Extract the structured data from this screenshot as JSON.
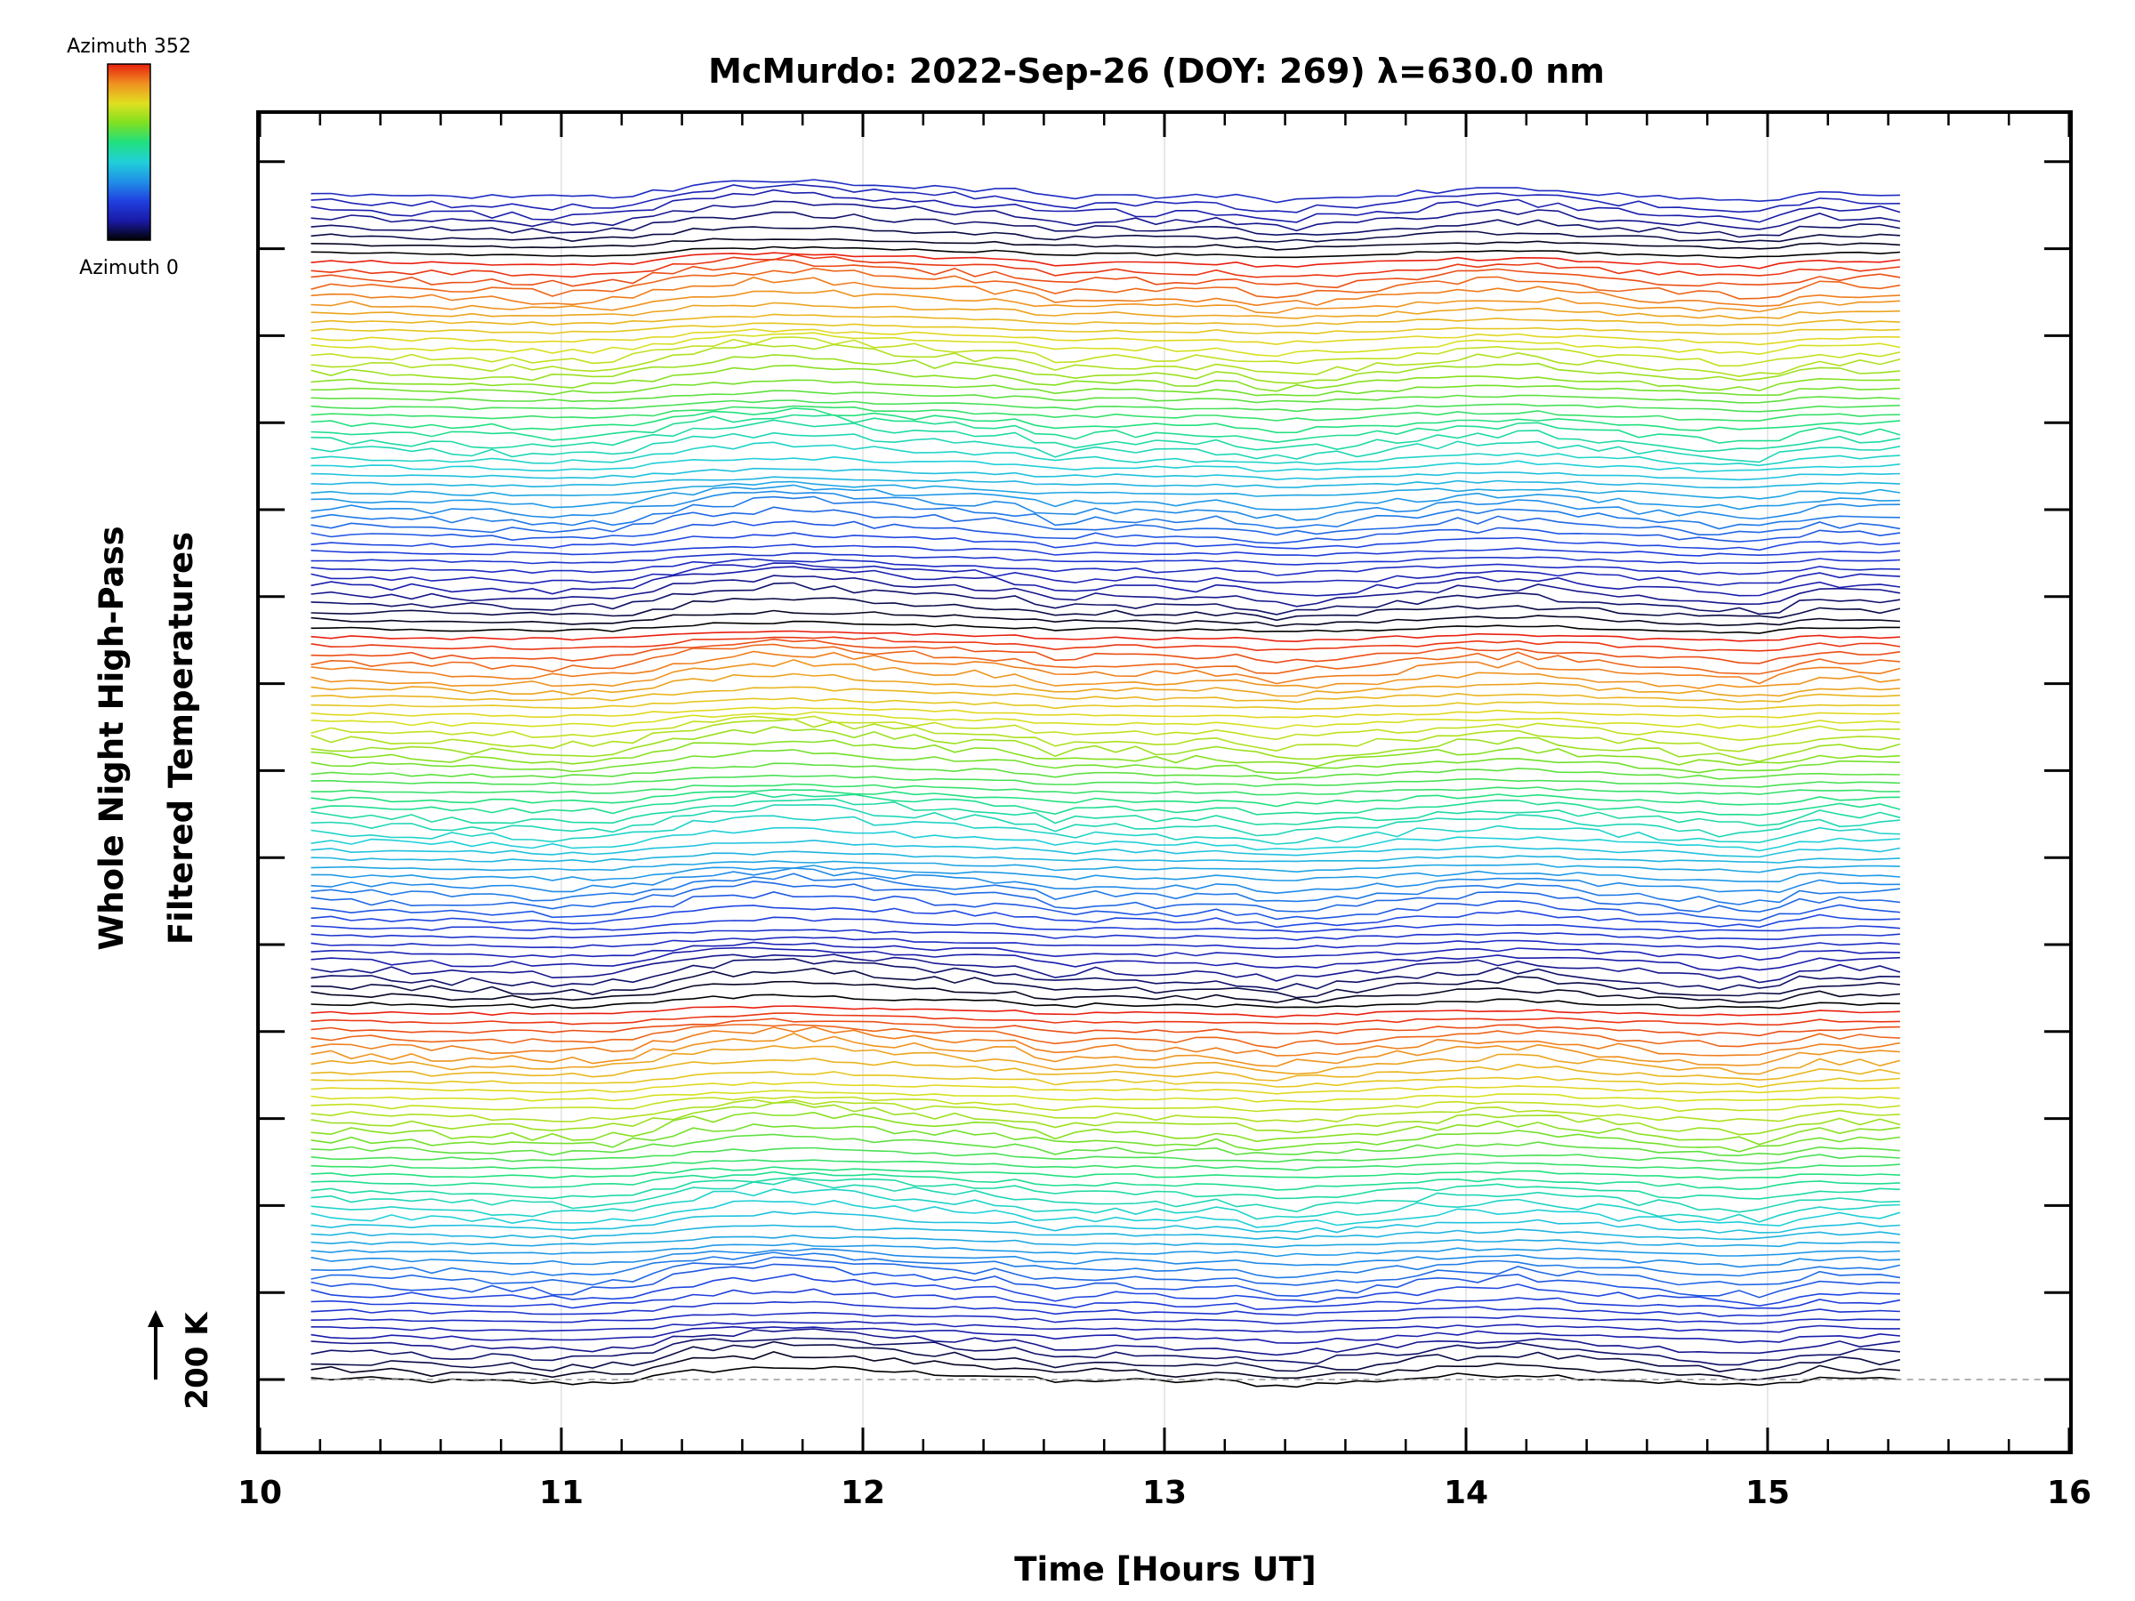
{
  "chart_data": {
    "type": "line",
    "title": "McMurdo: 2022-Sep-26 (DOY: 269) λ=630.0 nm",
    "xlabel": "Time [Hours UT]",
    "ylabel_line1": "Whole Night High-Pass",
    "ylabel_line2": "Filtered Temperatures",
    "xlim": [
      10,
      16
    ],
    "x_ticks": [
      "10",
      "11",
      "12",
      "13",
      "14",
      "15",
      "16"
    ],
    "x_minor_step": 0.2,
    "grid_x": [
      11,
      12,
      13,
      14,
      15
    ],
    "baseline_label": "200 K",
    "colorbar": {
      "top_label": "Azimuth 352",
      "bottom_label": "Azimuth 0",
      "colormap": "rainbow"
    },
    "time_range": [
      10.17,
      15.5
    ],
    "stack": {
      "n_traces": 140,
      "traces_per_cycle": 44,
      "azimuth_max": 352
    },
    "series_color_stops": [
      "#000000",
      "#1a1aa8",
      "#2040e0",
      "#2090e8",
      "#20d0d8",
      "#20e080",
      "#80e020",
      "#e0e020",
      "#f09020",
      "#e82010"
    ],
    "common_signal": {
      "x": [
        10.17,
        10.4,
        10.6,
        10.8,
        11.0,
        11.2,
        11.3,
        11.45,
        11.6,
        11.75,
        11.9,
        12.2,
        12.5,
        12.65,
        12.8,
        13.0,
        13.2,
        13.35,
        13.6,
        13.8,
        14.0,
        14.2,
        14.5,
        14.7,
        14.85,
        15.0,
        15.15,
        15.3,
        15.5
      ],
      "values": [
        0.1,
        0.0,
        -0.15,
        -0.2,
        -0.35,
        -0.2,
        0.2,
        0.8,
        1.0,
        1.2,
        1.0,
        0.6,
        0.3,
        -0.3,
        0.0,
        -0.2,
        -0.1,
        -0.6,
        -0.3,
        0.1,
        0.4,
        0.5,
        0.0,
        -0.3,
        -0.5,
        -0.6,
        0.2,
        0.1,
        0.1
      ]
    }
  }
}
